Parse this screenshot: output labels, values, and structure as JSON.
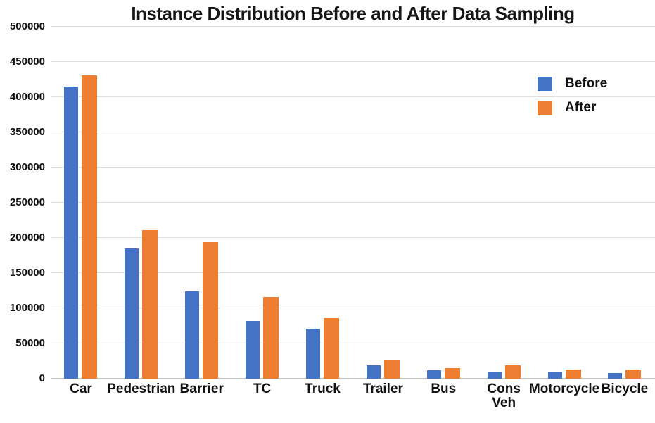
{
  "chart_data": {
    "type": "bar",
    "title": "Instance Distribution Before and After Data Sampling",
    "categories": [
      "Car",
      "Pedestrian",
      "Barrier",
      "TC",
      "Truck",
      "Trailer",
      "Bus",
      "Cons\nVeh",
      "Motorcycle",
      "Bicycle"
    ],
    "series": [
      {
        "name": "Before",
        "color": "#4472C4",
        "values": [
          415000,
          185500,
          124000,
          82500,
          71500,
          19500,
          12000,
          10500,
          10000,
          8000
        ]
      },
      {
        "name": "After",
        "color": "#ED7D31",
        "values": [
          431500,
          211000,
          194000,
          116500,
          86500,
          26000,
          15500,
          19000,
          13500,
          13500
        ]
      }
    ],
    "ylim": [
      0,
      500000
    ],
    "ytick_step": 50000,
    "grid": "horizontal",
    "legend_position": "top-right",
    "background": "#ffffff",
    "gridline_color": "#dedede"
  }
}
